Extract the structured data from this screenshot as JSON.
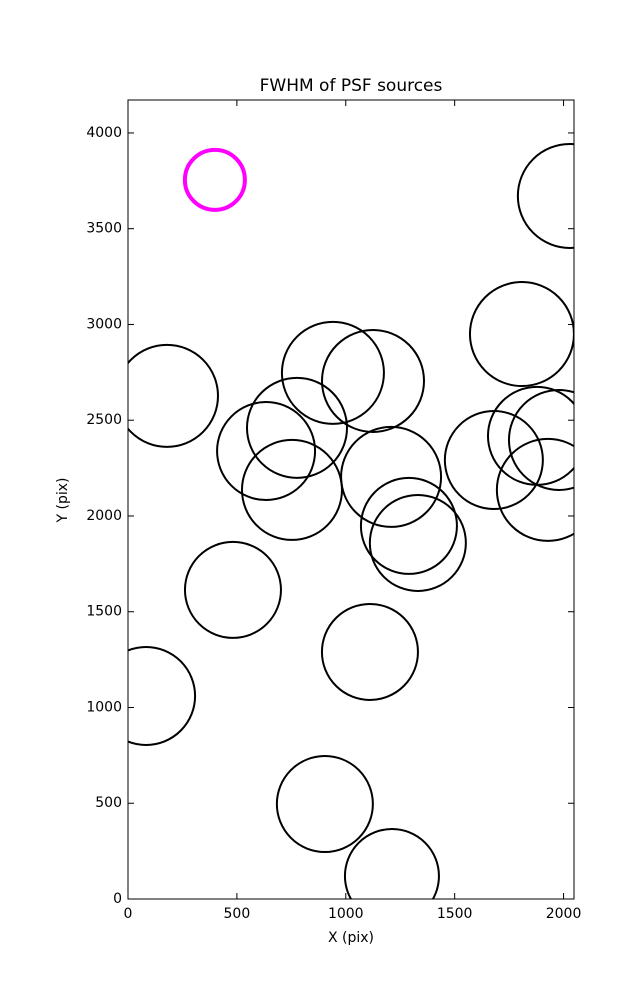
{
  "chart_data": {
    "type": "scatter",
    "title": "FWHM of PSF sources",
    "x_label": "X (pix)",
    "y_label": "Y (pix)",
    "xlim": [
      0,
      2048
    ],
    "ylim": [
      0,
      4172
    ],
    "xticks": [
      0,
      500,
      1000,
      1500,
      2000
    ],
    "yticks": [
      0,
      500,
      1000,
      1500,
      2000,
      2500,
      3000,
      3500,
      4000
    ],
    "grid": false,
    "series": [
      {
        "color": "#ff00ff",
        "x": [
          399
        ],
        "values": [
          3755
        ],
        "sizes": [
          30
        ]
      },
      {
        "color": "#000000",
        "x": [
          2029,
          1809,
          179,
          941,
          1125,
          776,
          634,
          753,
          1208,
          1680,
          1878,
          1979,
          1928,
          1290,
          1331,
          482,
          1111,
          83,
          904,
          1212
        ],
        "values": [
          3671,
          2950,
          2627,
          2747,
          2705,
          2460,
          2339,
          2136,
          2204,
          2292,
          2418,
          2397,
          2136,
          1948,
          1859,
          1614,
          1290,
          1060,
          496,
          120
        ],
        "sizes": [
          52,
          52,
          51,
          51,
          51,
          50,
          49,
          50,
          50,
          49,
          49,
          50,
          51,
          48,
          48,
          48,
          48,
          49,
          48,
          47
        ]
      }
    ]
  }
}
